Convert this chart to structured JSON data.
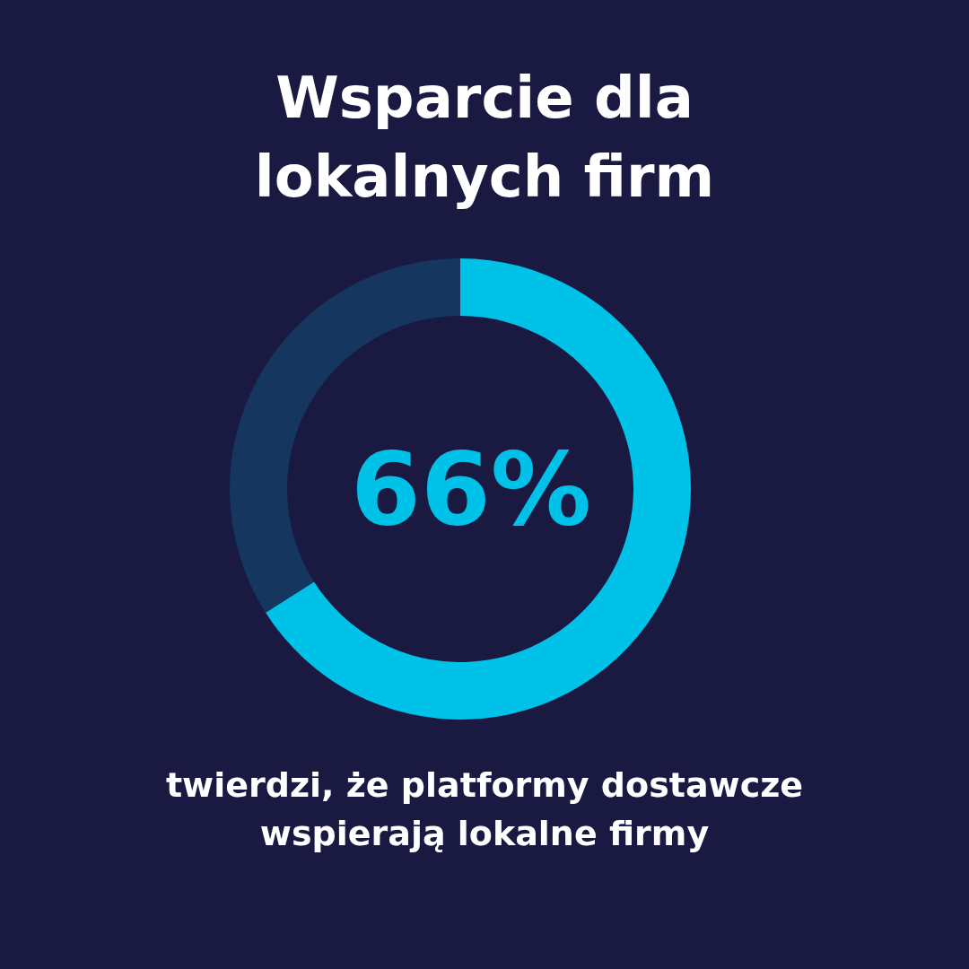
{
  "chart_data": {
    "type": "donut",
    "title": "Wsparcie dla\nlokalnych firm",
    "categories": [
      null,
      null
    ],
    "values": [
      66,
      34
    ],
    "colors": [
      "#00c2e8",
      "#15365f"
    ],
    "value_labels": [
      "66%",
      null
    ],
    "annotations": [
      "twierdzi, że platformy dostawcze\nwspierają lokalne firmy"
    ]
  }
}
